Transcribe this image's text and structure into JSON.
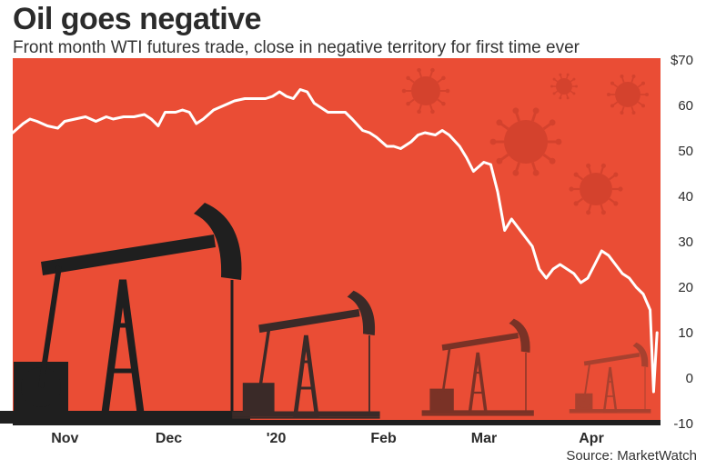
{
  "header": {
    "title": "Oil goes negative",
    "subtitle": "Front month WTI futures trade, close in negative territory for first time ever"
  },
  "footer": {
    "source": "Source: MarketWatch"
  },
  "colors": {
    "background": "#ea4d35",
    "line": "#ffffff",
    "silhouette": "#1f1f1f",
    "text": "#2b2b2b"
  },
  "chart_data": {
    "type": "line",
    "ylim": [
      -10,
      70
    ],
    "yticks": [
      {
        "value": 70,
        "label": "$70"
      },
      {
        "value": 60,
        "label": "60"
      },
      {
        "value": 50,
        "label": "50"
      },
      {
        "value": 40,
        "label": "40"
      },
      {
        "value": 30,
        "label": "30"
      },
      {
        "value": 20,
        "label": "20"
      },
      {
        "value": 10,
        "label": "10"
      },
      {
        "value": 0,
        "label": "0"
      },
      {
        "value": -10,
        "label": "-10"
      }
    ],
    "xticks": [
      {
        "label": "Nov",
        "x": "2019-11-01"
      },
      {
        "label": "Dec",
        "x": "2019-12-01"
      },
      {
        "label": "'20",
        "x": "2020-01-01"
      },
      {
        "label": "Feb",
        "x": "2020-02-01"
      },
      {
        "label": "Mar",
        "x": "2020-03-01"
      },
      {
        "label": "Apr",
        "x": "2020-04-01"
      }
    ],
    "xlim": [
      "2019-10-18",
      "2020-04-22"
    ],
    "series": [
      {
        "points": [
          [
            "2019-10-18",
            54
          ],
          [
            "2019-10-21",
            56
          ],
          [
            "2019-10-23",
            57
          ],
          [
            "2019-10-25",
            56.5
          ],
          [
            "2019-10-28",
            55.5
          ],
          [
            "2019-10-31",
            55
          ],
          [
            "2019-11-02",
            56.5
          ],
          [
            "2019-11-05",
            57
          ],
          [
            "2019-11-08",
            57.5
          ],
          [
            "2019-11-11",
            56.5
          ],
          [
            "2019-11-14",
            57.5
          ],
          [
            "2019-11-16",
            57
          ],
          [
            "2019-11-19",
            57.5
          ],
          [
            "2019-11-22",
            57.5
          ],
          [
            "2019-11-25",
            58
          ],
          [
            "2019-11-27",
            57
          ],
          [
            "2019-11-29",
            55.5
          ],
          [
            "2019-12-01",
            58.5
          ],
          [
            "2019-12-04",
            58.5
          ],
          [
            "2019-12-06",
            59
          ],
          [
            "2019-12-08",
            58.5
          ],
          [
            "2019-12-10",
            56
          ],
          [
            "2019-12-12",
            57
          ],
          [
            "2019-12-15",
            59
          ],
          [
            "2019-12-18",
            60
          ],
          [
            "2019-12-21",
            61
          ],
          [
            "2019-12-24",
            61.5
          ],
          [
            "2019-12-27",
            61.5
          ],
          [
            "2019-12-30",
            61.5
          ],
          [
            "2020-01-01",
            62
          ],
          [
            "2020-01-03",
            63
          ],
          [
            "2020-01-05",
            62
          ],
          [
            "2020-01-07",
            61.5
          ],
          [
            "2020-01-09",
            63.5
          ],
          [
            "2020-01-11",
            63
          ],
          [
            "2020-01-13",
            60.5
          ],
          [
            "2020-01-15",
            59.5
          ],
          [
            "2020-01-17",
            58.5
          ],
          [
            "2020-01-20",
            58.5
          ],
          [
            "2020-01-22",
            58.5
          ],
          [
            "2020-01-24",
            57
          ],
          [
            "2020-01-27",
            54.5
          ],
          [
            "2020-01-29",
            54
          ],
          [
            "2020-01-31",
            53
          ],
          [
            "2020-02-03",
            51
          ],
          [
            "2020-02-05",
            51
          ],
          [
            "2020-02-07",
            50.5
          ],
          [
            "2020-02-10",
            52
          ],
          [
            "2020-02-12",
            53.5
          ],
          [
            "2020-02-14",
            54
          ],
          [
            "2020-02-17",
            53.5
          ],
          [
            "2020-02-19",
            54.5
          ],
          [
            "2020-02-21",
            53.5
          ],
          [
            "2020-02-24",
            51
          ],
          [
            "2020-02-26",
            48.5
          ],
          [
            "2020-02-28",
            45.5
          ],
          [
            "2020-03-02",
            47.5
          ],
          [
            "2020-03-04",
            47
          ],
          [
            "2020-03-06",
            41
          ],
          [
            "2020-03-08",
            32.5
          ],
          [
            "2020-03-10",
            35
          ],
          [
            "2020-03-12",
            33
          ],
          [
            "2020-03-14",
            31
          ],
          [
            "2020-03-16",
            29
          ],
          [
            "2020-03-18",
            24
          ],
          [
            "2020-03-20",
            22
          ],
          [
            "2020-03-22",
            24
          ],
          [
            "2020-03-24",
            25
          ],
          [
            "2020-03-26",
            24
          ],
          [
            "2020-03-28",
            23
          ],
          [
            "2020-03-30",
            21
          ],
          [
            "2020-04-01",
            22
          ],
          [
            "2020-04-03",
            25
          ],
          [
            "2020-04-05",
            28
          ],
          [
            "2020-04-07",
            27
          ],
          [
            "2020-04-09",
            25
          ],
          [
            "2020-04-11",
            23
          ],
          [
            "2020-04-13",
            22
          ],
          [
            "2020-04-15",
            20
          ],
          [
            "2020-04-17",
            18.5
          ],
          [
            "2020-04-19",
            15
          ],
          [
            "2020-04-20",
            -3
          ],
          [
            "2020-04-21",
            10
          ]
        ]
      }
    ]
  }
}
